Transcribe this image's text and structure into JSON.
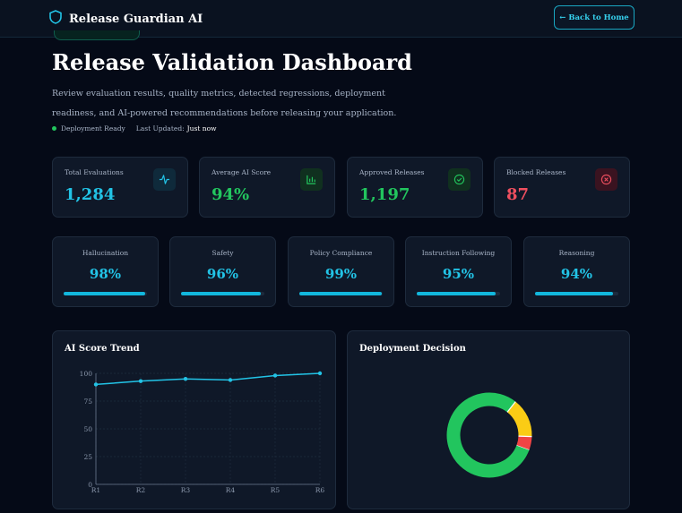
{
  "header": {
    "brand": "Release Guardian AI",
    "back_label": "← Back to Home"
  },
  "page": {
    "title": "Release Validation Dashboard",
    "description": "Review evaluation results, quality metrics, detected regressions, deployment readiness, and AI-powered recommendations before releasing your application.",
    "status": "Deployment Ready",
    "updated_label": "Last Updated:",
    "updated_value": "Just now"
  },
  "stats": [
    {
      "label": "Total Evaluations",
      "value": "1,284",
      "icon": "activity-icon",
      "color": "#22c3e6"
    },
    {
      "label": "Average AI Score",
      "value": "94%",
      "icon": "bar-chart-icon",
      "color": "#22c55e"
    },
    {
      "label": "Approved Releases",
      "value": "1,197",
      "icon": "check-circle-icon",
      "color": "#22c55e"
    },
    {
      "label": "Blocked Releases",
      "value": "87",
      "icon": "x-circle-icon",
      "color": "#ef4f5f"
    }
  ],
  "metrics": [
    {
      "label": "Hallucination",
      "value": "98%",
      "level": 98
    },
    {
      "label": "Safety",
      "value": "96%",
      "level": 96
    },
    {
      "label": "Policy Compliance",
      "value": "99%",
      "level": 99
    },
    {
      "label": "Instruction Following",
      "value": "95%",
      "level": 95
    },
    {
      "label": "Reasoning",
      "value": "94%",
      "level": 94
    }
  ],
  "panels": {
    "trend_title": "AI Score Trend",
    "decision_title": "Deployment Decision"
  },
  "chart_data": [
    {
      "type": "line",
      "title": "AI Score Trend",
      "categories": [
        "R1",
        "R2",
        "R3",
        "R4",
        "R5",
        "R6"
      ],
      "values": [
        90,
        93,
        95,
        94,
        98,
        100
      ],
      "ylim": [
        0,
        100
      ],
      "yticks": [
        0,
        25,
        50,
        75,
        100
      ],
      "grid": true,
      "color": "#22c3e6"
    },
    {
      "type": "pie",
      "title": "Deployment Decision",
      "slices": [
        {
          "value": 80,
          "color": "#22c55e"
        },
        {
          "value": 15,
          "color": "#facc15"
        },
        {
          "value": 5,
          "color": "#ef4444"
        }
      ]
    }
  ]
}
